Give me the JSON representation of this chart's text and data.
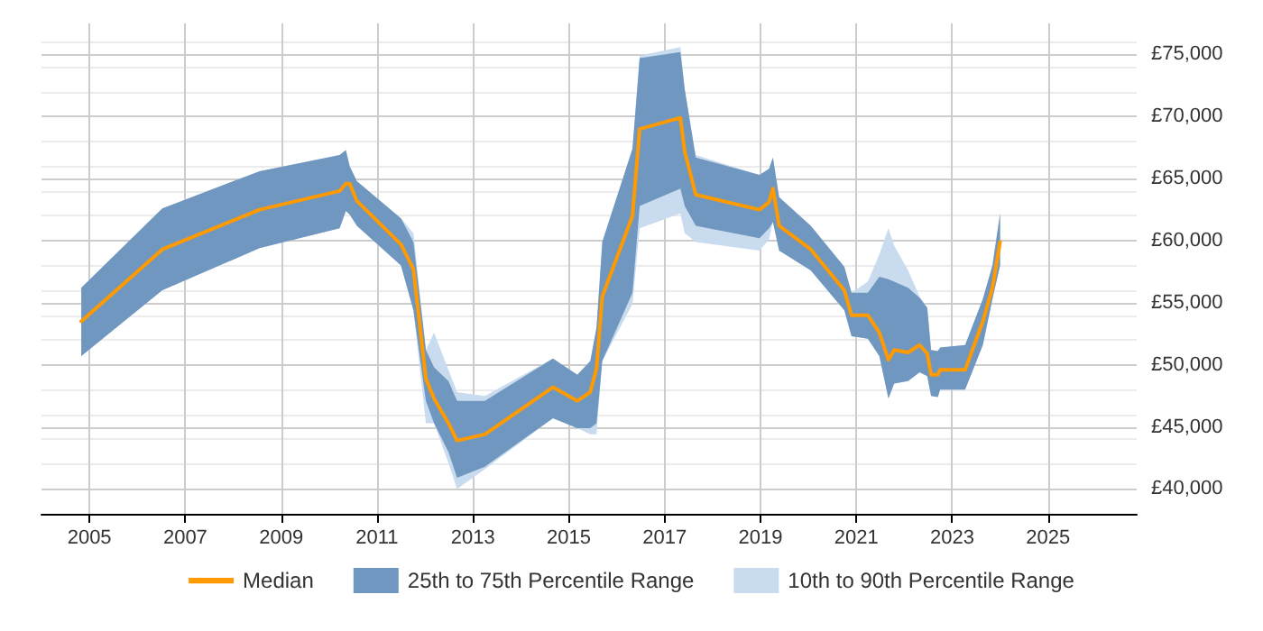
{
  "chart_data": {
    "type": "line",
    "x": [
      2004.83,
      2006.52,
      2008.55,
      2010.22,
      2010.35,
      2010.43,
      2010.58,
      2011.5,
      2011.76,
      2012.02,
      2012.19,
      2012.49,
      2012.67,
      2013.25,
      2014.67,
      2015.18,
      2015.45,
      2015.58,
      2015.7,
      2016.33,
      2016.48,
      2017.33,
      2017.42,
      2017.65,
      2018.98,
      2019.18,
      2019.26,
      2019.39,
      2020.05,
      2020.75,
      2020.9,
      2021.24,
      2021.48,
      2021.67,
      2021.79,
      2022.08,
      2022.32,
      2022.48,
      2022.56,
      2022.7,
      2022.75,
      2023.27,
      2023.64,
      2023.84,
      2024.0
    ],
    "series": [
      {
        "name": "Median",
        "color": "#ff9a00",
        "values": [
          53500,
          59300,
          62500,
          64000,
          64600,
          64600,
          63200,
          59700,
          57700,
          48900,
          47300,
          45300,
          43900,
          44400,
          48200,
          47100,
          47800,
          49700,
          55500,
          62000,
          69000,
          69900,
          67200,
          63700,
          62500,
          63100,
          64200,
          61200,
          59300,
          56000,
          54000,
          54000,
          52600,
          50400,
          51200,
          51000,
          51600,
          50900,
          49200,
          49200,
          49600,
          49600,
          53500,
          56200,
          59900
        ]
      },
      {
        "name": "25th to 75th Percentile Range",
        "type": "area",
        "color": "#7097bf",
        "values": [
          null,
          null,
          null,
          null,
          null,
          null,
          null,
          null,
          null,
          null,
          null,
          null,
          null,
          null,
          null,
          null,
          null,
          null,
          null,
          null,
          null,
          null,
          null,
          null,
          null,
          null,
          null,
          null,
          null,
          null,
          null,
          null,
          null,
          null,
          null,
          null,
          null,
          null,
          null,
          null,
          null,
          null,
          null,
          null,
          null
        ],
        "lower": [
          50700,
          56000,
          59400,
          61000,
          62400,
          62100,
          61200,
          58000,
          54400,
          47100,
          45300,
          43000,
          40900,
          41800,
          45700,
          44900,
          44900,
          45300,
          50300,
          55800,
          62800,
          64200,
          62800,
          61200,
          60200,
          61000,
          61500,
          59200,
          57600,
          54400,
          52300,
          52100,
          50700,
          47300,
          48500,
          48700,
          49400,
          49100,
          47500,
          47400,
          48000,
          48000,
          51600,
          55300,
          58000
        ],
        "upper": [
          56200,
          62600,
          65600,
          66900,
          67300,
          66000,
          64800,
          61800,
          59900,
          51200,
          49800,
          48700,
          47100,
          47100,
          50500,
          49200,
          50300,
          53000,
          59900,
          67400,
          74700,
          75200,
          72200,
          66700,
          65300,
          65800,
          66700,
          63500,
          61200,
          57900,
          55800,
          55800,
          57100,
          56900,
          56700,
          56200,
          55400,
          54600,
          51200,
          51100,
          51400,
          51600,
          55300,
          58000,
          62200
        ]
      },
      {
        "name": "10th to 90th Percentile Range",
        "type": "area",
        "color": "#c9dbee",
        "values": [
          null,
          null,
          null,
          null,
          null,
          null,
          null,
          null,
          null,
          null,
          null,
          null,
          null,
          null,
          null,
          null,
          null,
          null,
          null,
          null,
          null,
          null,
          null,
          null,
          null,
          null,
          null,
          null,
          null,
          null,
          null,
          null,
          null,
          null,
          null,
          null,
          null,
          null,
          null,
          null,
          null,
          null,
          null,
          null,
          null
        ],
        "lower": [
          50700,
          56000,
          59400,
          61000,
          62400,
          62100,
          61200,
          58000,
          54400,
          45300,
          45300,
          42100,
          40000,
          41600,
          45700,
          44900,
          44400,
          44400,
          50300,
          54900,
          61000,
          62200,
          60600,
          59900,
          59200,
          60100,
          61500,
          59200,
          57600,
          54400,
          52300,
          52100,
          50700,
          47300,
          48500,
          48700,
          49400,
          49100,
          47500,
          47400,
          48000,
          48000,
          51600,
          55300,
          58000
        ],
        "upper": [
          56200,
          62600,
          65600,
          66900,
          67300,
          66000,
          64800,
          61800,
          60600,
          51200,
          52600,
          49600,
          47800,
          47500,
          50500,
          49200,
          50300,
          53000,
          59900,
          67400,
          74900,
          75600,
          72200,
          66900,
          65300,
          65800,
          66700,
          63500,
          61200,
          57900,
          55800,
          56700,
          58900,
          61000,
          59600,
          57600,
          55500,
          54600,
          51200,
          51100,
          51400,
          51600,
          55300,
          58000,
          62200
        ]
      }
    ],
    "xlim": [
      2004,
      2026.85
    ],
    "xticks": [
      2005,
      2007,
      2009,
      2011,
      2013,
      2015,
      2017,
      2019,
      2021,
      2023,
      2025
    ],
    "ylim": [
      38000,
      77500
    ],
    "yticks": [
      {
        "value": 40000,
        "label": "£40,000"
      },
      {
        "value": 45000,
        "label": "£45,000"
      },
      {
        "value": 50000,
        "label": "£50,000"
      },
      {
        "value": 55000,
        "label": "£55,000"
      },
      {
        "value": 60000,
        "label": "£60,000"
      },
      {
        "value": 65000,
        "label": "£65,000"
      },
      {
        "value": 70000,
        "label": "£70,000"
      },
      {
        "value": 75000,
        "label": "£75,000"
      }
    ],
    "grid": true,
    "legend": "bottom",
    "marker": "none",
    "line_style": "solid"
  }
}
